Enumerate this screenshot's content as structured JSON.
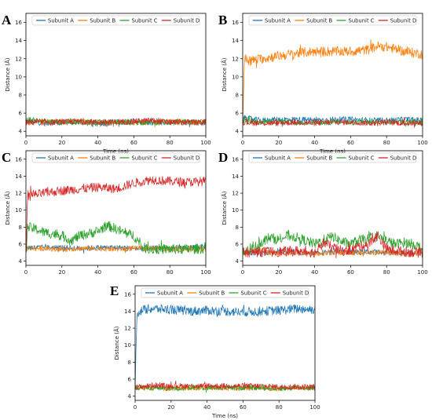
{
  "colors": {
    "Subunit A": "#1f77b4",
    "Subunit B": "#ff7f0e",
    "Subunit C": "#2ca02c",
    "Subunit D": "#d62728"
  },
  "chart_data": [
    {
      "panel": "A",
      "type": "line",
      "xlabel": "Time (ns)",
      "ylabel": "Distance (Å)",
      "xlim": [
        0,
        100
      ],
      "ylim": [
        3.5,
        17
      ],
      "xticks": [
        "0",
        "20",
        "40",
        "60",
        "80",
        "100"
      ],
      "yticks": [
        "4",
        "6",
        "8",
        "10",
        "12",
        "14",
        "16"
      ],
      "legend": [
        "Subunit A",
        "Subunit B",
        "Subunit C",
        "Subunit D"
      ],
      "legend_position": "top",
      "series": [
        {
          "name": "Subunit A",
          "x": [
            0,
            10,
            20,
            30,
            40,
            50,
            60,
            70,
            80,
            90,
            100
          ],
          "y": [
            5.1,
            4.9,
            5.0,
            5.0,
            4.8,
            5.0,
            5.1,
            4.9,
            5.0,
            5.0,
            4.9
          ]
        },
        {
          "name": "Subunit B",
          "x": [
            0,
            10,
            20,
            30,
            40,
            50,
            60,
            70,
            80,
            90,
            100
          ],
          "y": [
            5.0,
            5.0,
            5.1,
            5.0,
            5.0,
            5.0,
            5.0,
            5.0,
            5.1,
            5.0,
            5.0
          ]
        },
        {
          "name": "Subunit C",
          "x": [
            0,
            10,
            20,
            30,
            40,
            50,
            60,
            70,
            80,
            90,
            100
          ],
          "y": [
            5.3,
            5.1,
            5.0,
            5.1,
            5.0,
            5.0,
            5.0,
            5.0,
            5.0,
            5.0,
            5.0
          ]
        },
        {
          "name": "Subunit D",
          "x": [
            0,
            10,
            20,
            30,
            40,
            50,
            60,
            70,
            80,
            90,
            100
          ],
          "y": [
            5.0,
            5.0,
            5.0,
            5.1,
            5.0,
            5.0,
            5.1,
            5.2,
            5.0,
            5.0,
            5.0
          ]
        }
      ]
    },
    {
      "panel": "B",
      "type": "line",
      "xlabel": "Time (ns)",
      "ylabel": "Distance (Å)",
      "xlim": [
        0,
        100
      ],
      "ylim": [
        3.5,
        17
      ],
      "xticks": [
        "0",
        "20",
        "40",
        "60",
        "80",
        "100"
      ],
      "yticks": [
        "4",
        "6",
        "8",
        "10",
        "12",
        "14",
        "16"
      ],
      "legend": [
        "Subunit A",
        "Subunit B",
        "Subunit C",
        "Subunit D"
      ],
      "legend_position": "top",
      "series": [
        {
          "name": "Subunit A",
          "x": [
            0,
            10,
            20,
            30,
            40,
            50,
            60,
            70,
            80,
            90,
            100
          ],
          "y": [
            5.5,
            5.2,
            5.3,
            5.3,
            5.2,
            5.3,
            5.3,
            5.2,
            5.2,
            5.3,
            5.2
          ]
        },
        {
          "name": "Subunit B",
          "x": [
            0,
            1,
            5,
            10,
            20,
            30,
            40,
            50,
            60,
            70,
            75,
            80,
            90,
            100
          ],
          "y": [
            5.0,
            12.0,
            11.8,
            12.0,
            12.3,
            12.6,
            12.8,
            12.8,
            12.8,
            13.0,
            13.4,
            13.3,
            12.8,
            12.5
          ]
        },
        {
          "name": "Subunit C",
          "x": [
            0,
            10,
            20,
            30,
            40,
            50,
            60,
            70,
            80,
            90,
            100
          ],
          "y": [
            5.2,
            5.0,
            5.1,
            4.9,
            5.0,
            5.0,
            5.0,
            5.0,
            5.0,
            5.0,
            5.0
          ]
        },
        {
          "name": "Subunit D",
          "x": [
            0,
            10,
            20,
            30,
            40,
            50,
            60,
            70,
            80,
            90,
            100
          ],
          "y": [
            5.0,
            4.9,
            4.9,
            5.0,
            4.9,
            5.0,
            5.0,
            4.9,
            5.0,
            4.9,
            4.9
          ]
        }
      ]
    },
    {
      "panel": "C",
      "type": "line",
      "xlabel": "",
      "ylabel": "Distance (Å)",
      "xlim": [
        0,
        100
      ],
      "ylim": [
        3.5,
        17
      ],
      "xticks": [
        "0",
        "20",
        "40",
        "60",
        "80",
        "100"
      ],
      "yticks": [
        "4",
        "6",
        "8",
        "10",
        "12",
        "14",
        "16"
      ],
      "legend": [
        "Subunit A",
        "Subunit B",
        "Subunit C",
        "Subunit D"
      ],
      "legend_position": "top",
      "series": [
        {
          "name": "Subunit A",
          "x": [
            0,
            10,
            20,
            30,
            40,
            50,
            60,
            70,
            80,
            90,
            100
          ],
          "y": [
            5.6,
            5.6,
            5.6,
            5.5,
            5.6,
            5.6,
            5.5,
            5.5,
            5.5,
            5.6,
            5.7
          ]
        },
        {
          "name": "Subunit B",
          "x": [
            0,
            10,
            20,
            30,
            40,
            50,
            60,
            70,
            80,
            90,
            100
          ],
          "y": [
            5.5,
            5.5,
            5.4,
            5.5,
            5.5,
            5.4,
            5.5,
            5.5,
            5.4,
            5.4,
            5.4
          ]
        },
        {
          "name": "Subunit C",
          "x": [
            0,
            1,
            5,
            10,
            20,
            25,
            30,
            40,
            45,
            50,
            55,
            60,
            65,
            70,
            80,
            90,
            100
          ],
          "y": [
            5.0,
            8.0,
            7.8,
            7.4,
            7.0,
            6.4,
            7.0,
            7.5,
            8.2,
            7.8,
            7.3,
            7.0,
            5.6,
            5.4,
            5.4,
            5.4,
            5.5
          ]
        },
        {
          "name": "Subunit D",
          "x": [
            0,
            1,
            5,
            10,
            20,
            30,
            40,
            50,
            60,
            65,
            70,
            80,
            90,
            100
          ],
          "y": [
            5.0,
            11.8,
            11.8,
            12.0,
            12.3,
            12.5,
            12.7,
            12.5,
            13.2,
            13.4,
            13.6,
            13.4,
            13.3,
            13.4
          ]
        }
      ]
    },
    {
      "panel": "D",
      "type": "line",
      "xlabel": "",
      "ylabel": "Distance (Å)",
      "xlim": [
        0,
        100
      ],
      "ylim": [
        3.5,
        17
      ],
      "xticks": [
        "0",
        "20",
        "40",
        "60",
        "80",
        "100"
      ],
      "yticks": [
        "4",
        "6",
        "8",
        "10",
        "12",
        "14",
        "16"
      ],
      "legend": [
        "Subunit A",
        "Subunit B",
        "Subunit C",
        "Subunit D"
      ],
      "legend_position": "top",
      "series": [
        {
          "name": "Subunit A",
          "x": [
            0,
            10,
            20,
            30,
            40,
            50,
            60,
            70,
            80,
            90,
            100
          ],
          "y": [
            5.0,
            5.0,
            5.1,
            5.0,
            5.0,
            5.1,
            5.0,
            5.1,
            5.0,
            5.0,
            5.0
          ]
        },
        {
          "name": "Subunit B",
          "x": [
            0,
            10,
            20,
            30,
            40,
            50,
            60,
            70,
            80,
            90,
            100
          ],
          "y": [
            5.0,
            5.2,
            4.9,
            5.0,
            4.9,
            5.0,
            5.0,
            5.0,
            5.0,
            4.9,
            4.8
          ]
        },
        {
          "name": "Subunit C",
          "x": [
            0,
            5,
            10,
            15,
            20,
            25,
            30,
            35,
            40,
            45,
            50,
            55,
            60,
            65,
            70,
            75,
            80,
            85,
            90,
            95,
            100
          ],
          "y": [
            5.0,
            5.4,
            6.2,
            6.8,
            6.5,
            7.0,
            6.8,
            6.4,
            6.0,
            6.5,
            6.9,
            6.3,
            6.0,
            6.5,
            6.6,
            7.0,
            6.4,
            6.0,
            6.2,
            6.0,
            5.5
          ]
        },
        {
          "name": "Subunit D",
          "x": [
            0,
            10,
            20,
            30,
            40,
            45,
            50,
            55,
            60,
            65,
            70,
            75,
            80,
            90,
            100
          ],
          "y": [
            5.0,
            5.1,
            5.1,
            5.2,
            5.0,
            6.2,
            5.6,
            5.2,
            5.3,
            5.8,
            6.0,
            7.0,
            5.4,
            5.1,
            5.0
          ]
        }
      ]
    },
    {
      "panel": "E",
      "type": "line",
      "xlabel": "Time (ns)",
      "ylabel": "Distance (Å)",
      "xlim": [
        0,
        100
      ],
      "ylim": [
        3.5,
        17
      ],
      "xticks": [
        "0",
        "20",
        "40",
        "60",
        "80",
        "100"
      ],
      "yticks": [
        "4",
        "6",
        "8",
        "10",
        "12",
        "14",
        "16"
      ],
      "legend": [
        "Subunit A",
        "Subunit B",
        "Subunit C",
        "Subunit D"
      ],
      "legend_position": "top",
      "series": [
        {
          "name": "Subunit A",
          "x": [
            0,
            1,
            5,
            10,
            20,
            30,
            40,
            50,
            60,
            70,
            80,
            90,
            100
          ],
          "y": [
            5.0,
            13.8,
            14.2,
            14.3,
            14.2,
            14.0,
            14.1,
            14.0,
            13.9,
            14.0,
            14.1,
            14.3,
            14.2
          ]
        },
        {
          "name": "Subunit B",
          "x": [
            0,
            10,
            20,
            30,
            40,
            50,
            60,
            70,
            80,
            90,
            100
          ],
          "y": [
            5.0,
            5.0,
            4.9,
            5.0,
            5.0,
            4.9,
            5.0,
            5.0,
            4.9,
            5.0,
            4.9
          ]
        },
        {
          "name": "Subunit C",
          "x": [
            0,
            10,
            20,
            30,
            40,
            50,
            60,
            70,
            80,
            90,
            100
          ],
          "y": [
            5.0,
            5.0,
            4.9,
            5.0,
            5.0,
            5.0,
            5.0,
            5.0,
            4.9,
            5.0,
            5.0
          ]
        },
        {
          "name": "Subunit D",
          "x": [
            0,
            10,
            20,
            30,
            40,
            50,
            60,
            70,
            80,
            90,
            100
          ],
          "y": [
            5.0,
            5.3,
            5.2,
            5.2,
            5.2,
            5.2,
            5.2,
            5.2,
            5.1,
            5.1,
            5.1
          ]
        }
      ]
    }
  ]
}
